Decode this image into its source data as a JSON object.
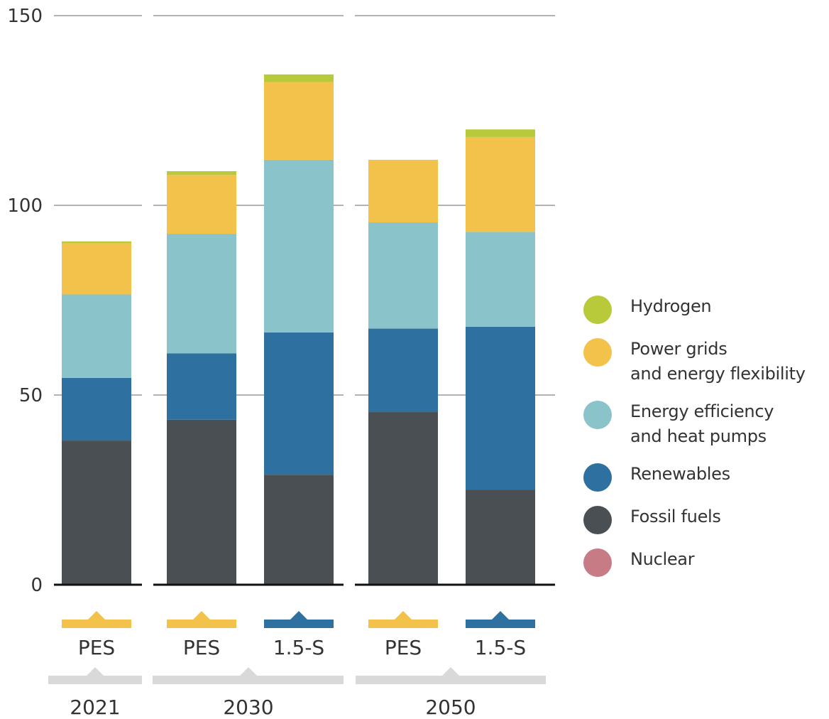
{
  "colors": {
    "Hydrogen": "#b8c93a",
    "Power grids and energy flexibility": "#f2c24b",
    "Energy efficiency and heat pumps": "#8ac4ca",
    "Renewables": "#2e71a0",
    "Fossil fuels": "#4a4f53",
    "Nuclear": "#c77b85",
    "pes_marker": "#f2c24b",
    "s15_marker": "#2e71a0",
    "year_marker": "#d9d9d9",
    "grid": "#999999",
    "baseline": "#111111"
  },
  "legend": [
    {
      "key": "Hydrogen",
      "label": "Hydrogen"
    },
    {
      "key": "Power grids and energy flexibility",
      "label": "Power grids\nand energy flexibility"
    },
    {
      "key": "Energy efficiency and heat pumps",
      "label": "Energy efficiency\nand heat pumps"
    },
    {
      "key": "Renewables",
      "label": "Renewables"
    },
    {
      "key": "Fossil fuels",
      "label": "Fossil fuels"
    },
    {
      "key": "Nuclear",
      "label": "Nuclear"
    }
  ],
  "chart_data": {
    "type": "bar",
    "stacked": true,
    "ylim": [
      0,
      150
    ],
    "yticks": [
      0,
      50,
      100,
      150
    ],
    "grid": true,
    "legend_position": "right",
    "groups": [
      {
        "year": "2021",
        "categories": [
          "PES"
        ]
      },
      {
        "year": "2030",
        "categories": [
          "PES",
          "1.5-S"
        ]
      },
      {
        "year": "2050",
        "categories": [
          "PES",
          "1.5-S"
        ]
      }
    ],
    "bars": [
      {
        "scenario": "PES",
        "year": "2021"
      },
      {
        "scenario": "PES",
        "year": "2030"
      },
      {
        "scenario": "1.5-S",
        "year": "2030"
      },
      {
        "scenario": "PES",
        "year": "2050"
      },
      {
        "scenario": "1.5-S",
        "year": "2050"
      }
    ],
    "series": [
      {
        "name": "Nuclear",
        "values": [
          0,
          0,
          0,
          0,
          0
        ]
      },
      {
        "name": "Fossil fuels",
        "values": [
          38,
          43.5,
          29,
          45.5,
          25
        ]
      },
      {
        "name": "Renewables",
        "values": [
          16.5,
          17.5,
          37.5,
          22,
          43
        ]
      },
      {
        "name": "Energy efficiency and heat pumps",
        "values": [
          22,
          31.5,
          45.5,
          28,
          25
        ]
      },
      {
        "name": "Power grids and energy flexibility",
        "values": [
          13.5,
          15.5,
          20.5,
          16.5,
          25
        ]
      },
      {
        "name": "Hydrogen",
        "values": [
          0.5,
          1,
          2,
          0,
          2
        ]
      }
    ]
  }
}
